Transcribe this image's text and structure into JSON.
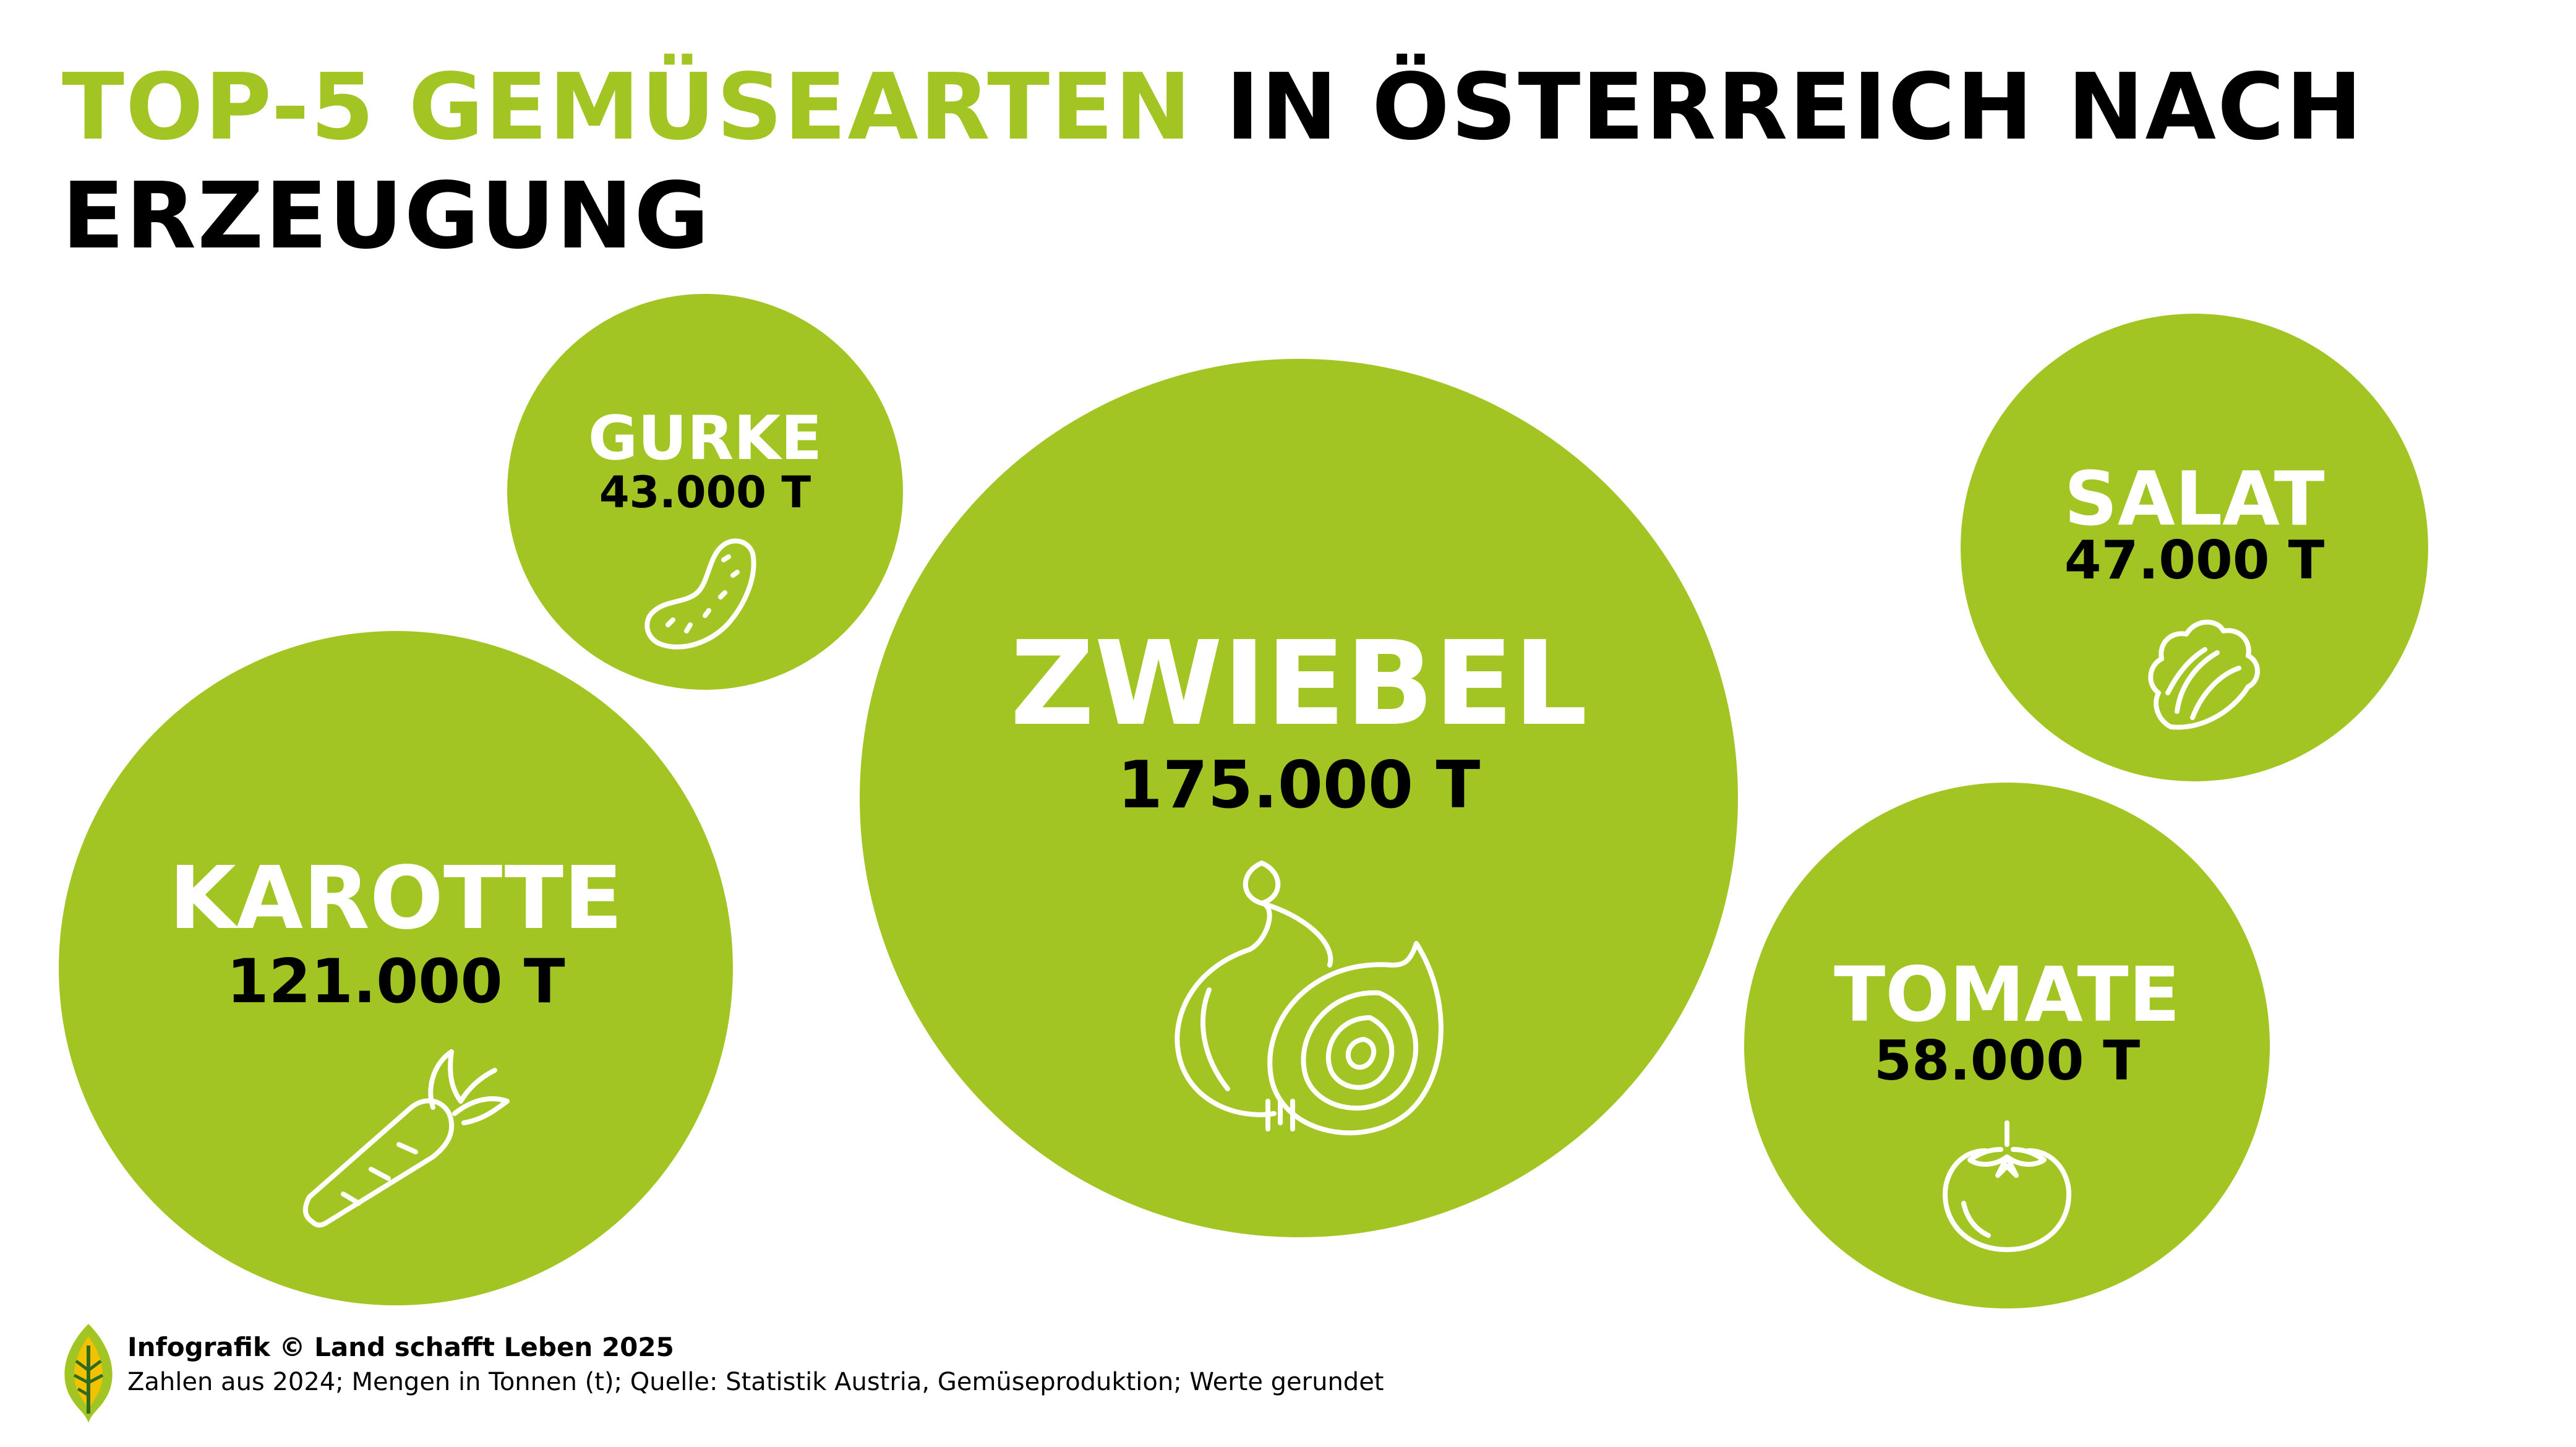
{
  "title": {
    "accent": "TOP-5 GEMÜSEARTEN",
    "rest_line1": " IN ÖSTERREICH NACH",
    "rest_line2": "ERZEUGUNG"
  },
  "colors": {
    "bubble": "#A2C523",
    "accent_text": "#A2C523",
    "value_text": "#000000",
    "name_text": "#FFFFFF"
  },
  "chart_data": {
    "type": "bubble",
    "unit": "T",
    "items": [
      {
        "name": "ZWIEBEL",
        "value": 175000,
        "label": "175.000 T",
        "icon": "onion-icon"
      },
      {
        "name": "KAROTTE",
        "value": 121000,
        "label": "121.000 T",
        "icon": "carrot-icon"
      },
      {
        "name": "TOMATE",
        "value": 58000,
        "label": "58.000 T",
        "icon": "tomato-icon"
      },
      {
        "name": "SALAT",
        "value": 47000,
        "label": "47.000 T",
        "icon": "lettuce-icon"
      },
      {
        "name": "GURKE",
        "value": 43000,
        "label": "43.000 T",
        "icon": "cucumber-icon"
      }
    ]
  },
  "footer": {
    "logo_icon": "leaf-logo-icon",
    "credit": "Infografik © Land schafft Leben 2025",
    "note": "Zahlen aus 2024; Mengen in Tonnen (t); Quelle: Statistik Austria, Gemüseproduktion; Werte gerundet"
  }
}
